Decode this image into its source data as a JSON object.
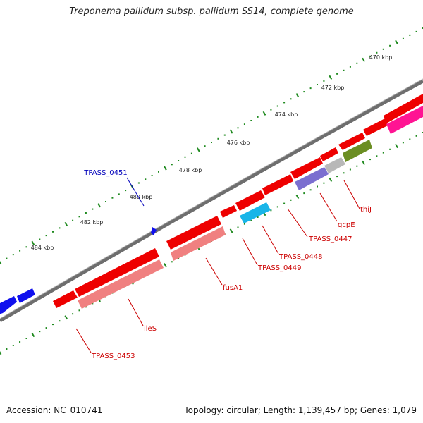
{
  "title": "Treponema pallidum subsp. pallidum SS14, complete genome",
  "footer": {
    "accession": "Accession: NC_010741",
    "summary": "Topology: circular; Length: 1,139,457 bp; Genes: 1,079"
  },
  "colors": {
    "backbone": "#777777",
    "ticks": "#1f8a1f",
    "gene_red": "#ff0000",
    "gene_blue": "#1010ee",
    "label_red": "#cc0000",
    "label_blue": "#0000bb"
  },
  "ruler": {
    "unit": "kbp",
    "labels": [
      "470 kbp",
      "472 kbp",
      "474 kbp",
      "476 kbp",
      "478 kbp",
      "480 kbp",
      "482 kbp",
      "484 kbp"
    ]
  },
  "gene_labels": [
    {
      "text": "TPASS_0451",
      "color": "blue"
    },
    {
      "text": "thiJ",
      "color": "red"
    },
    {
      "text": "gcpE",
      "color": "red"
    },
    {
      "text": "TPASS_0447",
      "color": "red"
    },
    {
      "text": "TPASS_0448",
      "color": "red"
    },
    {
      "text": "TPASS_0449",
      "color": "red"
    },
    {
      "text": "fusA1",
      "color": "red"
    },
    {
      "text": "ileS",
      "color": "red"
    },
    {
      "text": "TPASS_0453",
      "color": "red"
    }
  ]
}
